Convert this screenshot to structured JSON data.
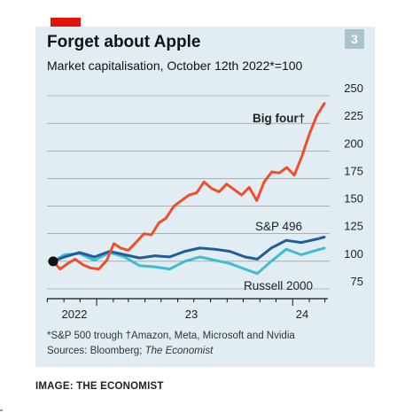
{
  "header": {
    "title": "Forget about Apple",
    "subtitle": "Market capitalisation, October 12th 2022*=100",
    "badge": "3"
  },
  "notes": {
    "footnote": "*S&P 500 trough  †Amazon, Meta, Microsoft and Nvidia",
    "sources_prefix": "Sources: Bloomberg; ",
    "sources_italic": "The Economist"
  },
  "credit": "IMAGE: THE ECONOMIST",
  "colors": {
    "big_four": "#f04e2b",
    "sp496": "#1f5c99",
    "russell": "#3ebcd2",
    "panel": "#e1edf2",
    "gridline": "#8a8a8a",
    "accent": "#e3120b"
  },
  "chart_data": {
    "type": "line",
    "title": "Forget about Apple",
    "subtitle": "Market capitalisation, October 12th 2022*=100",
    "x_tick_labels": [
      "2022",
      "23",
      "24"
    ],
    "x_range": [
      "2022-10-12",
      "2024-02-29"
    ],
    "ylim": [
      75,
      250
    ],
    "y_ticks": [
      75,
      100,
      125,
      150,
      175,
      200,
      225,
      250
    ],
    "grid": true,
    "y_axis_position": "right",
    "start_marker": "2022-10-12",
    "series": [
      {
        "name": "Big four†",
        "color": "#f04e2b",
        "points": [
          [
            "2022-10-12",
            100
          ],
          [
            "2022-10-25",
            93
          ],
          [
            "2022-11-08",
            98
          ],
          [
            "2022-11-22",
            102
          ],
          [
            "2022-12-06",
            97
          ],
          [
            "2022-12-20",
            94
          ],
          [
            "2023-01-05",
            93
          ],
          [
            "2023-01-20",
            101
          ],
          [
            "2023-02-02",
            116
          ],
          [
            "2023-02-15",
            112
          ],
          [
            "2023-03-01",
            110
          ],
          [
            "2023-03-15",
            117
          ],
          [
            "2023-03-30",
            125
          ],
          [
            "2023-04-13",
            124
          ],
          [
            "2023-04-27",
            135
          ],
          [
            "2023-05-10",
            139
          ],
          [
            "2023-05-25",
            150
          ],
          [
            "2023-06-08",
            155
          ],
          [
            "2023-06-22",
            160
          ],
          [
            "2023-07-06",
            162
          ],
          [
            "2023-07-20",
            172
          ],
          [
            "2023-08-03",
            166
          ],
          [
            "2023-08-17",
            163
          ],
          [
            "2023-08-31",
            170
          ],
          [
            "2023-09-14",
            165
          ],
          [
            "2023-09-28",
            160
          ],
          [
            "2023-10-12",
            167
          ],
          [
            "2023-10-26",
            155
          ],
          [
            "2023-11-09",
            172
          ],
          [
            "2023-11-23",
            181
          ],
          [
            "2023-12-07",
            180
          ],
          [
            "2023-12-21",
            185
          ],
          [
            "2024-01-04",
            178
          ],
          [
            "2024-01-18",
            195
          ],
          [
            "2024-02-01",
            215
          ],
          [
            "2024-02-15",
            232
          ],
          [
            "2024-02-29",
            243
          ]
        ]
      },
      {
        "name": "S&P 496",
        "color": "#1f5c99",
        "points": [
          [
            "2022-10-12",
            100
          ],
          [
            "2022-11-02",
            104
          ],
          [
            "2022-11-30",
            108
          ],
          [
            "2022-12-28",
            104
          ],
          [
            "2023-01-25",
            109
          ],
          [
            "2023-02-22",
            106
          ],
          [
            "2023-03-22",
            103
          ],
          [
            "2023-04-19",
            105
          ],
          [
            "2023-05-17",
            104
          ],
          [
            "2023-06-14",
            109
          ],
          [
            "2023-07-12",
            112
          ],
          [
            "2023-08-09",
            111
          ],
          [
            "2023-09-06",
            109
          ],
          [
            "2023-10-04",
            104
          ],
          [
            "2023-10-27",
            102
          ],
          [
            "2023-11-22",
            112
          ],
          [
            "2023-12-20",
            119
          ],
          [
            "2024-01-17",
            117
          ],
          [
            "2024-02-14",
            120
          ],
          [
            "2024-02-29",
            122
          ]
        ]
      },
      {
        "name": "Russell 2000",
        "color": "#3ebcd2",
        "points": [
          [
            "2022-10-12",
            100
          ],
          [
            "2022-11-02",
            106
          ],
          [
            "2022-11-30",
            107
          ],
          [
            "2022-12-28",
            101
          ],
          [
            "2023-01-25",
            108
          ],
          [
            "2023-02-22",
            104
          ],
          [
            "2023-03-22",
            96
          ],
          [
            "2023-04-19",
            95
          ],
          [
            "2023-05-17",
            93
          ],
          [
            "2023-06-14",
            100
          ],
          [
            "2023-07-12",
            104
          ],
          [
            "2023-08-09",
            101
          ],
          [
            "2023-09-06",
            98
          ],
          [
            "2023-10-04",
            93
          ],
          [
            "2023-10-27",
            89
          ],
          [
            "2023-11-22",
            100
          ],
          [
            "2023-12-20",
            111
          ],
          [
            "2024-01-17",
            106
          ],
          [
            "2024-02-14",
            110
          ],
          [
            "2024-02-29",
            112
          ]
        ]
      }
    ]
  }
}
